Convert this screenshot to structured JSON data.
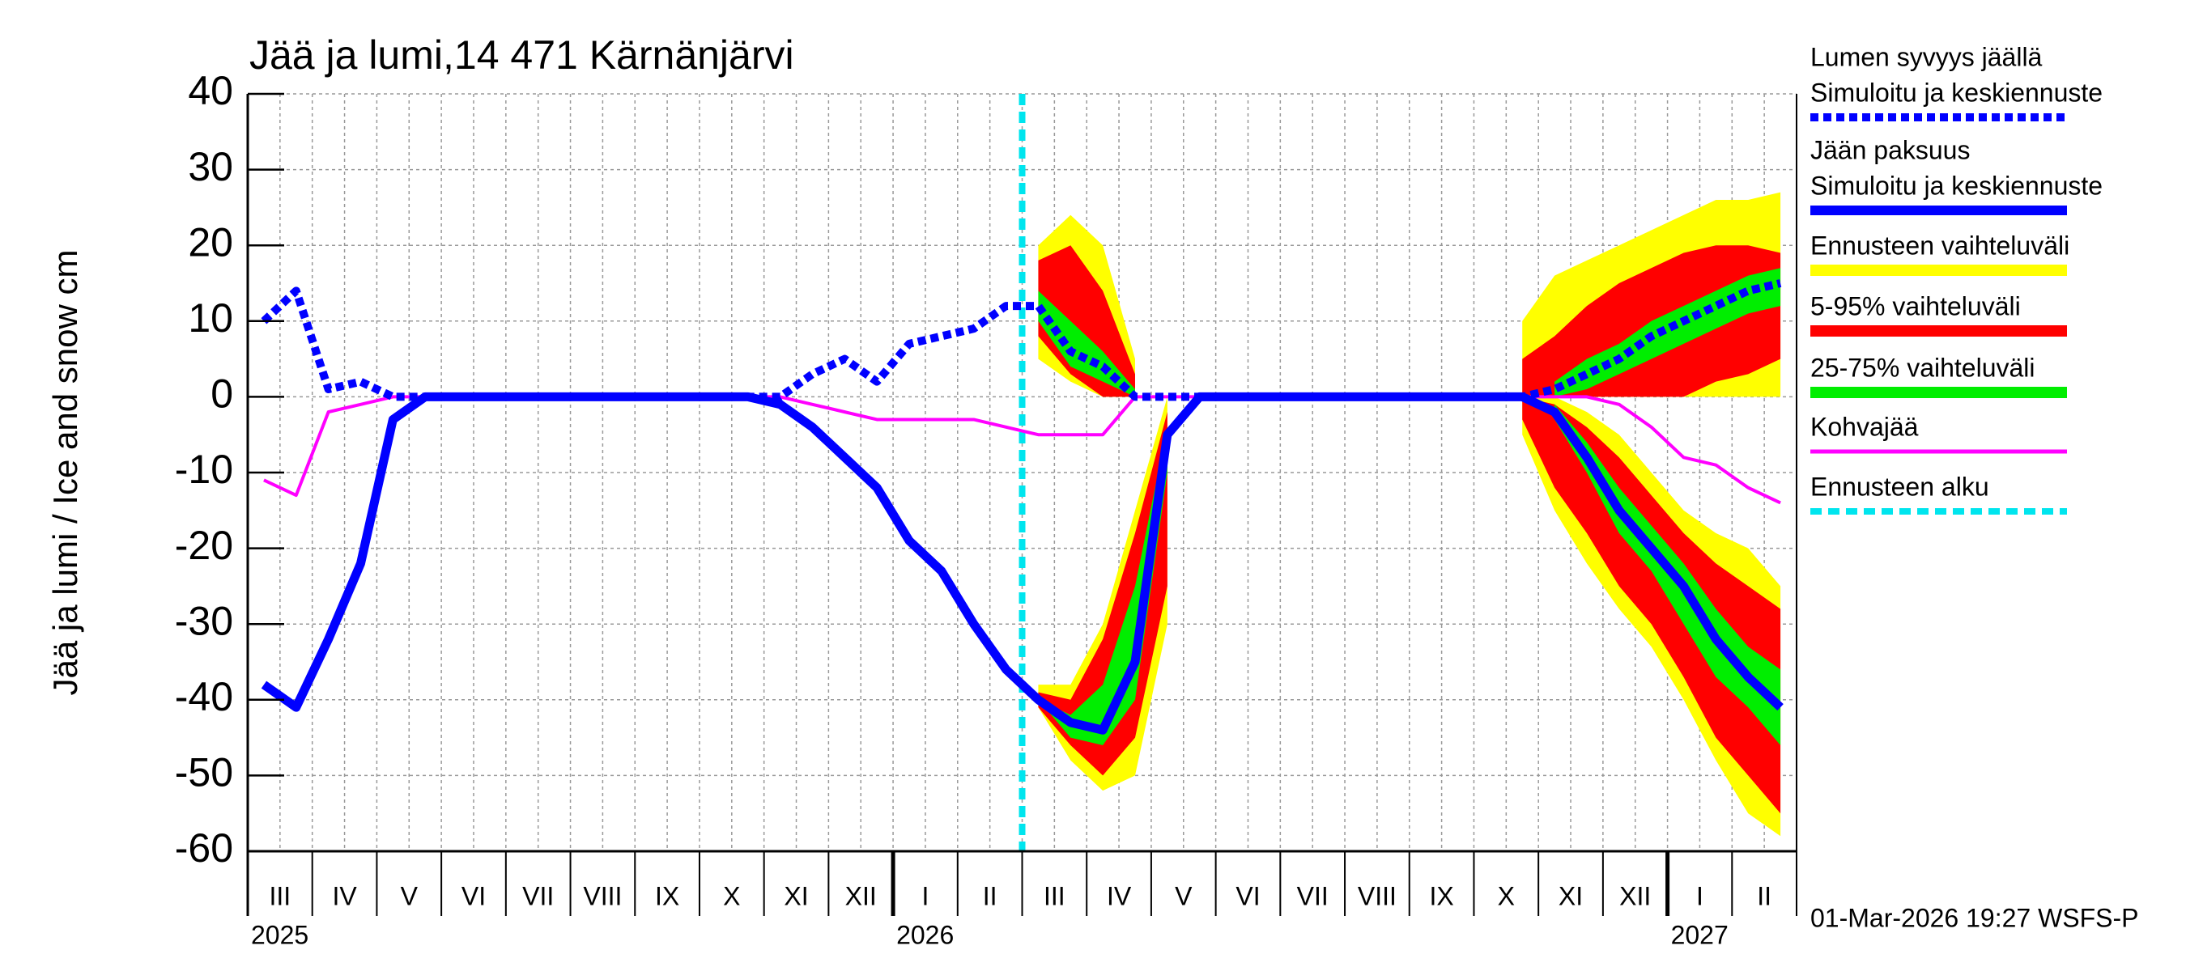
{
  "chart_data": {
    "type": "line",
    "title": "Jää ja lumi,14 471 Kärnänjärvi",
    "y_label": "Jää ja lumi / Ice and snow    cm",
    "footer": "01-Mar-2026 19:27 WSFS-P",
    "years": [
      "2025",
      "2026",
      "2027"
    ],
    "categories": [
      "III",
      null,
      "IV",
      null,
      "V",
      null,
      "VI",
      null,
      "VII",
      null,
      "VIII",
      null,
      "IX",
      null,
      "X",
      null,
      "XI",
      null,
      "XII",
      null,
      "I",
      null,
      "II",
      null,
      "III",
      null,
      "IV",
      null,
      "V",
      null,
      "VI",
      null,
      "VII",
      null,
      "VIII",
      null,
      "IX",
      null,
      "X",
      null,
      "XI",
      null,
      "XII",
      null,
      "I",
      null,
      "II",
      null
    ],
    "ylim": [
      -60,
      40
    ],
    "yticks": [
      -60,
      -50,
      -40,
      -30,
      -20,
      -10,
      0,
      10,
      20,
      30,
      40
    ],
    "grid": true,
    "series": [
      {
        "name": "Lumen syvyys jäällä",
        "note": "Simuloitu ja keskiennuste",
        "color": "#0000ff",
        "style": "dotted",
        "values": [
          10,
          14,
          1,
          2,
          0,
          0,
          0,
          0,
          0,
          0,
          0,
          0,
          0,
          0,
          0,
          0,
          0,
          3,
          5,
          2,
          7,
          8,
          9,
          12,
          12,
          6,
          4,
          0,
          0,
          0,
          0,
          0,
          0,
          0,
          0,
          0,
          0,
          0,
          0,
          0,
          1,
          3,
          5,
          8,
          10,
          12,
          14,
          15
        ]
      },
      {
        "name": "Jään paksuus",
        "note": "Simuloitu ja keskiennuste",
        "color": "#0000ff",
        "style": "solid",
        "values": [
          -38,
          -41,
          -32,
          -22,
          -3,
          0,
          0,
          0,
          0,
          0,
          0,
          0,
          0,
          0,
          0,
          0,
          -1,
          -4,
          -8,
          -12,
          -19,
          -23,
          -30,
          -36,
          -40,
          -43,
          -44,
          -35,
          -5,
          0,
          0,
          0,
          0,
          0,
          0,
          0,
          0,
          0,
          0,
          0,
          -2,
          -8,
          -15,
          -20,
          -25,
          -32,
          -37,
          -41
        ]
      },
      {
        "name": "Kohvajää",
        "color": "#ff00ff",
        "style": "thin",
        "values": [
          -11,
          -13,
          -2,
          -1,
          0,
          0,
          0,
          0,
          0,
          0,
          0,
          0,
          0,
          0,
          0,
          0,
          0,
          -1,
          -2,
          -3,
          -3,
          -3,
          -3,
          -4,
          -5,
          -5,
          -5,
          0,
          0,
          0,
          0,
          0,
          0,
          0,
          0,
          0,
          0,
          0,
          0,
          0,
          0,
          0,
          -1,
          -4,
          -8,
          -9,
          -12,
          -14
        ]
      }
    ],
    "bands": [
      {
        "name": "Ennusteen vaihteluväli",
        "color": "#ffff00",
        "snow_upper": [
          null,
          null,
          null,
          null,
          null,
          null,
          null,
          null,
          null,
          null,
          null,
          null,
          null,
          null,
          null,
          null,
          null,
          null,
          null,
          null,
          null,
          null,
          null,
          null,
          20,
          24,
          20,
          5,
          null,
          null,
          null,
          null,
          null,
          null,
          null,
          null,
          null,
          null,
          null,
          10,
          16,
          18,
          20,
          22,
          24,
          26,
          26,
          27
        ],
        "snow_lower": [
          null,
          null,
          null,
          null,
          null,
          null,
          null,
          null,
          null,
          null,
          null,
          null,
          null,
          null,
          null,
          null,
          null,
          null,
          null,
          null,
          null,
          null,
          null,
          null,
          5,
          2,
          0,
          0,
          null,
          null,
          null,
          null,
          null,
          null,
          null,
          null,
          null,
          null,
          null,
          0,
          0,
          0,
          0,
          0,
          0,
          0,
          0,
          0
        ],
        "ice_upper": [
          null,
          null,
          null,
          null,
          null,
          null,
          null,
          null,
          null,
          null,
          null,
          null,
          null,
          null,
          null,
          null,
          null,
          null,
          null,
          null,
          null,
          null,
          null,
          null,
          -38,
          -38,
          -30,
          -15,
          0,
          null,
          null,
          null,
          null,
          null,
          null,
          null,
          null,
          null,
          null,
          0,
          0,
          -2,
          -5,
          -10,
          -15,
          -18,
          -20,
          -25
        ],
        "ice_lower": [
          null,
          null,
          null,
          null,
          null,
          null,
          null,
          null,
          null,
          null,
          null,
          null,
          null,
          null,
          null,
          null,
          null,
          null,
          null,
          null,
          null,
          null,
          null,
          null,
          -41,
          -48,
          -52,
          -50,
          -30,
          null,
          null,
          null,
          null,
          null,
          null,
          null,
          null,
          null,
          null,
          -5,
          -15,
          -22,
          -28,
          -33,
          -40,
          -48,
          -55,
          -58
        ]
      },
      {
        "name": "5-95% vaihteluväli",
        "color": "#ff0000",
        "snow_upper": [
          null,
          null,
          null,
          null,
          null,
          null,
          null,
          null,
          null,
          null,
          null,
          null,
          null,
          null,
          null,
          null,
          null,
          null,
          null,
          null,
          null,
          null,
          null,
          null,
          18,
          20,
          14,
          3,
          null,
          null,
          null,
          null,
          null,
          null,
          null,
          null,
          null,
          null,
          null,
          5,
          8,
          12,
          15,
          17,
          19,
          20,
          20,
          19
        ],
        "snow_lower": [
          null,
          null,
          null,
          null,
          null,
          null,
          null,
          null,
          null,
          null,
          null,
          null,
          null,
          null,
          null,
          null,
          null,
          null,
          null,
          null,
          null,
          null,
          null,
          null,
          8,
          3,
          0,
          0,
          null,
          null,
          null,
          null,
          null,
          null,
          null,
          null,
          null,
          null,
          null,
          0,
          0,
          0,
          0,
          0,
          0,
          2,
          3,
          5
        ],
        "ice_upper": [
          null,
          null,
          null,
          null,
          null,
          null,
          null,
          null,
          null,
          null,
          null,
          null,
          null,
          null,
          null,
          null,
          null,
          null,
          null,
          null,
          null,
          null,
          null,
          null,
          -39,
          -40,
          -32,
          -18,
          -2,
          null,
          null,
          null,
          null,
          null,
          null,
          null,
          null,
          null,
          null,
          0,
          -1,
          -4,
          -8,
          -13,
          -18,
          -22,
          -25,
          -28
        ],
        "ice_lower": [
          null,
          null,
          null,
          null,
          null,
          null,
          null,
          null,
          null,
          null,
          null,
          null,
          null,
          null,
          null,
          null,
          null,
          null,
          null,
          null,
          null,
          null,
          null,
          null,
          -41,
          -46,
          -50,
          -45,
          -25,
          null,
          null,
          null,
          null,
          null,
          null,
          null,
          null,
          null,
          null,
          -3,
          -12,
          -18,
          -25,
          -30,
          -37,
          -45,
          -50,
          -55
        ]
      },
      {
        "name": "25-75% vaihteluväli",
        "color": "#00ee00",
        "snow_upper": [
          null,
          null,
          null,
          null,
          null,
          null,
          null,
          null,
          null,
          null,
          null,
          null,
          null,
          null,
          null,
          null,
          null,
          null,
          null,
          null,
          null,
          null,
          null,
          null,
          14,
          10,
          6,
          1,
          null,
          null,
          null,
          null,
          null,
          null,
          null,
          null,
          null,
          null,
          null,
          null,
          2,
          5,
          7,
          10,
          12,
          14,
          16,
          17
        ],
        "snow_lower": [
          null,
          null,
          null,
          null,
          null,
          null,
          null,
          null,
          null,
          null,
          null,
          null,
          null,
          null,
          null,
          null,
          null,
          null,
          null,
          null,
          null,
          null,
          null,
          null,
          10,
          4,
          2,
          0,
          null,
          null,
          null,
          null,
          null,
          null,
          null,
          null,
          null,
          null,
          null,
          null,
          0,
          1,
          3,
          5,
          7,
          9,
          11,
          12
        ],
        "ice_upper": [
          null,
          null,
          null,
          null,
          null,
          null,
          null,
          null,
          null,
          null,
          null,
          null,
          null,
          null,
          null,
          null,
          null,
          null,
          null,
          null,
          null,
          null,
          null,
          null,
          -40,
          -42,
          -38,
          -25,
          -4,
          null,
          null,
          null,
          null,
          null,
          null,
          null,
          null,
          null,
          null,
          null,
          -1,
          -6,
          -12,
          -17,
          -22,
          -28,
          -33,
          -36
        ],
        "ice_lower": [
          null,
          null,
          null,
          null,
          null,
          null,
          null,
          null,
          null,
          null,
          null,
          null,
          null,
          null,
          null,
          null,
          null,
          null,
          null,
          null,
          null,
          null,
          null,
          null,
          -40,
          -45,
          -46,
          -40,
          -10,
          null,
          null,
          null,
          null,
          null,
          null,
          null,
          null,
          null,
          null,
          null,
          -3,
          -10,
          -18,
          -23,
          -30,
          -37,
          -41,
          -46
        ]
      }
    ],
    "forecast_start": {
      "name": "Ennusteen alku",
      "color": "#00e5ee"
    }
  }
}
